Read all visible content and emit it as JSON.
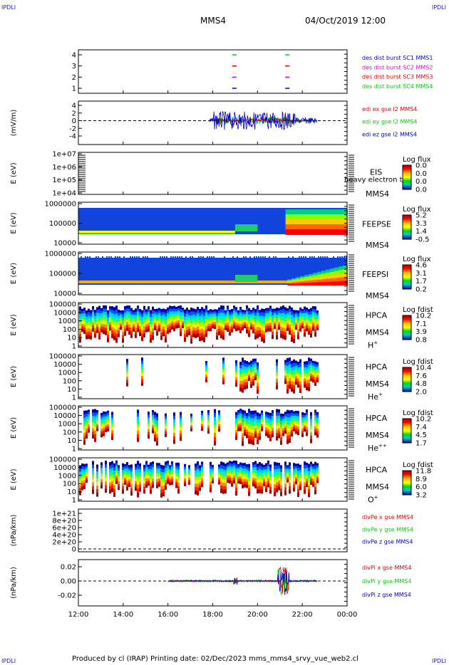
{
  "corner_labels": {
    "top_left": "IPDLI",
    "top_right": "IPDLI",
    "bottom_left": "IPDLI",
    "bottom_right": "IPDLI"
  },
  "header": {
    "spacecraft": "MMS4",
    "datetime": "04/Oct/2019 12:00"
  },
  "footer": {
    "text": "Produced by cl (IRAP)   Printing date: 02/Dec/2023   mms_mms4_srvy_vue_web2.cl"
  },
  "colors": {
    "red": "#dd0000",
    "green": "#00cc00",
    "blue": "#0000cc",
    "magenta": "#dd00dd",
    "frame": "#000000"
  },
  "x_axis": {
    "ticks": [
      "12:00",
      "14:00",
      "16:00",
      "18:00",
      "20:00",
      "22:00",
      "00:00"
    ]
  },
  "chart_data": [
    {
      "type": "scatter",
      "id": "burst",
      "ylim": [
        0.5,
        4.5
      ],
      "yticks": [
        "1",
        "2",
        "3",
        "4"
      ],
      "legend": [
        {
          "text": "des dist burst SC1 MMS1",
          "color": "#0000cc"
        },
        {
          "text": "des dist burst SC2 MMS2",
          "color": "#dd00dd"
        },
        {
          "text": "des dist burst SC3 MMS3",
          "color": "#dd0000"
        },
        {
          "text": "des dist burst SC4 MMS4",
          "color": "#00cc00"
        }
      ],
      "series": [
        {
          "name": "des dist burst SC1 MMS1",
          "x": [
            "18:58",
            "21:20"
          ],
          "y": [
            1,
            1
          ]
        },
        {
          "name": "des dist burst SC2 MMS2",
          "x": [
            "18:58",
            "21:20"
          ],
          "y": [
            2,
            2
          ]
        },
        {
          "name": "des dist burst SC3 MMS3",
          "x": [
            "18:58",
            "21:20"
          ],
          "y": [
            3,
            3
          ]
        },
        {
          "name": "des dist burst SC4 MMS4",
          "x": [
            "18:58",
            "21:20"
          ],
          "y": [
            4,
            4
          ]
        }
      ]
    },
    {
      "type": "line",
      "id": "edi",
      "ylabel": "(mV/m)",
      "ylim": [
        -5,
        5
      ],
      "yticks": [
        "4",
        "2",
        "0",
        "-2",
        "-4"
      ],
      "legend": [
        {
          "text": "edi ex gse l2 MMS4",
          "color": "#dd0000"
        },
        {
          "text": "edi ey gse l2 MMS4",
          "color": "#00cc00"
        },
        {
          "text": "edi ez gse l2 MMS4",
          "color": "#0000cc"
        }
      ],
      "x_range": [
        "17:50",
        "22:40"
      ]
    },
    {
      "type": "heatmap",
      "id": "eis",
      "ylabel": "E (eV)",
      "yticks": [
        "1e+07",
        "1e+06",
        "1e+05",
        "1e+04"
      ],
      "right_label": [
        "EIS",
        "MMS4"
      ],
      "overlay_label": "heavy electron to",
      "colorbar": {
        "title": "Log flux",
        "ticks": [
          "0.0",
          "0.0",
          "0.0",
          "0.0"
        ]
      }
    },
    {
      "type": "heatmap",
      "id": "feepse",
      "ylabel": "E (eV)",
      "yticks": [
        "1000000",
        "100000",
        "10000"
      ],
      "right_label": [
        "FEEPSE",
        "MMS4"
      ],
      "colorbar": {
        "title": "Log flux",
        "ticks": [
          "5.2",
          "3.3",
          "1.4",
          "-0.5"
        ]
      }
    },
    {
      "type": "heatmap",
      "id": "feepsi",
      "ylabel": "E (eV)",
      "yticks": [
        "1000000",
        "100000",
        "10000"
      ],
      "right_label": [
        "FEEPSI",
        "MMS4"
      ],
      "colorbar": {
        "title": "Log flux",
        "ticks": [
          "4.6",
          "3.1",
          "1.7",
          "0.2"
        ]
      }
    },
    {
      "type": "heatmap",
      "id": "hpca_h",
      "ylabel": "E (eV)",
      "yticks": [
        "100000",
        "10000",
        "1000",
        "100",
        "10",
        "1"
      ],
      "right_label": [
        "HPCA",
        "MMS4"
      ],
      "species": "H",
      "species_sup": "+",
      "colorbar": {
        "title": "Log fdist",
        "ticks": [
          "10.2",
          "7.1",
          "3.9",
          "0.8"
        ]
      }
    },
    {
      "type": "heatmap",
      "id": "hpca_he1",
      "ylabel": "E (eV)",
      "yticks": [
        "100000",
        "10000",
        "1000",
        "100",
        "10",
        "1"
      ],
      "right_label": [
        "HPCA",
        "MMS4"
      ],
      "species": "He",
      "species_sup": "+",
      "colorbar": {
        "title": "Log fdist",
        "ticks": [
          "10.4",
          "7.6",
          "4.8",
          "2.0"
        ]
      }
    },
    {
      "type": "heatmap",
      "id": "hpca_he2",
      "ylabel": "E (eV)",
      "yticks": [
        "100000",
        "10000",
        "1000",
        "100",
        "10",
        "1"
      ],
      "right_label": [
        "HPCA",
        "MMS4"
      ],
      "species": "He",
      "species_sup": "++",
      "colorbar": {
        "title": "Log fdist",
        "ticks": [
          "10.2",
          "7.4",
          "4.5",
          "1.7"
        ]
      }
    },
    {
      "type": "heatmap",
      "id": "hpca_o",
      "ylabel": "E (eV)",
      "yticks": [
        "100000",
        "10000",
        "1000",
        "100",
        "10",
        "1"
      ],
      "right_label": [
        "HPCA",
        "MMS4"
      ],
      "species": "O",
      "species_sup": "+",
      "colorbar": {
        "title": "Log fdist",
        "ticks": [
          "11.8",
          "8.9",
          "6.0",
          "3.2"
        ]
      }
    },
    {
      "type": "line",
      "id": "divpe",
      "ylabel": "(nPa/km)",
      "ylim": [
        0,
        1.1e+21
      ],
      "yticks": [
        "1e+21",
        "8e+20",
        "6e+20",
        "4e+20",
        "2e+20",
        "0"
      ],
      "legend": [
        {
          "text": "divPe x gse MMS4",
          "color": "#dd0000"
        },
        {
          "text": "divPe y gse MMS4",
          "color": "#00cc00"
        },
        {
          "text": "divPe z gse MMS4",
          "color": "#0000cc"
        }
      ]
    },
    {
      "type": "line",
      "id": "divpi",
      "ylabel": "(nPa/km)",
      "ylim": [
        -0.035,
        0.03
      ],
      "yticks": [
        "0.02",
        "0.00",
        "-0.02"
      ],
      "legend": [
        {
          "text": "divPi x gse MMS4",
          "color": "#dd0000"
        },
        {
          "text": "divPi y gse MMS4",
          "color": "#00cc00"
        },
        {
          "text": "divPi z gse MMS4",
          "color": "#0000cc"
        }
      ]
    }
  ]
}
